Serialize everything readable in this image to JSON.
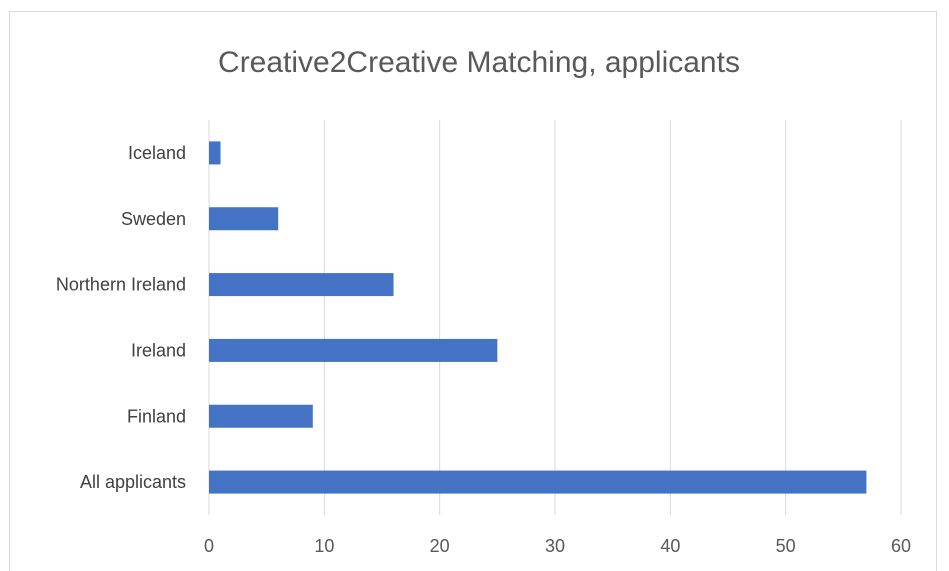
{
  "chart_data": {
    "type": "bar",
    "orientation": "horizontal",
    "title": "Creative2Creative Matching, applicants",
    "categories": [
      "Iceland",
      "Sweden",
      "Northern Ireland",
      "Ireland",
      "Finland",
      "All applicants"
    ],
    "values": [
      1,
      6,
      16,
      25,
      9,
      57
    ],
    "xlabel": "",
    "ylabel": "",
    "xlim": [
      0,
      60
    ],
    "xticks": [
      0,
      10,
      20,
      30,
      40,
      50,
      60
    ],
    "grid": "vertical",
    "legend": "none",
    "bar_color": "#4472c4"
  }
}
